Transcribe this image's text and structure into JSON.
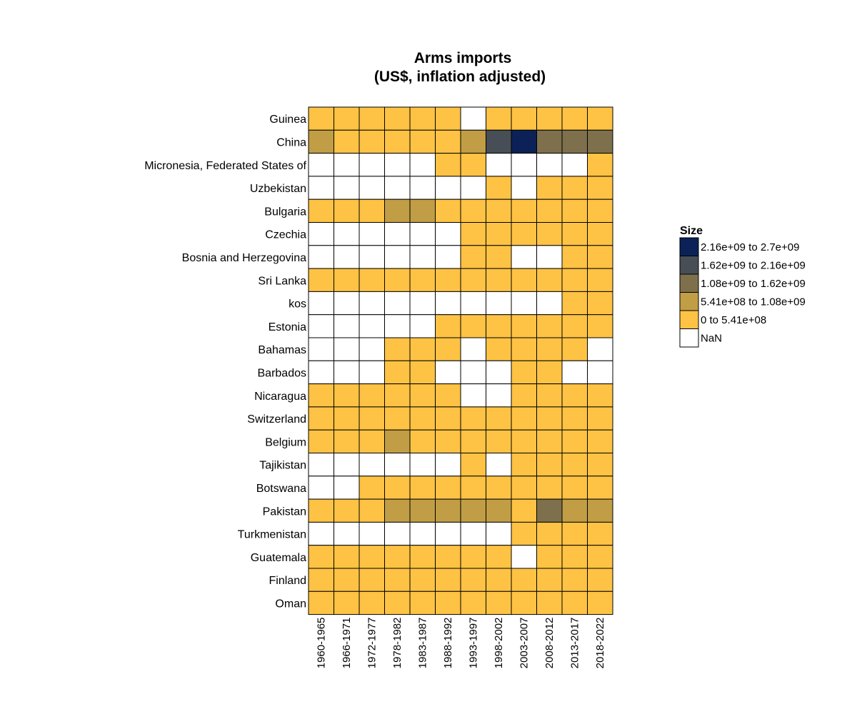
{
  "chart_data": {
    "type": "heatmap",
    "title": "Arms imports",
    "subtitle": "(US$, inflation adjusted)",
    "rows": [
      "Guinea",
      "China",
      "Micronesia, Federated States of",
      "Uzbekistan",
      "Bulgaria",
      "Czechia",
      "Bosnia and Herzegovina",
      "Sri Lanka",
      "kos",
      "Estonia",
      "Bahamas",
      "Barbados",
      "Nicaragua",
      "Switzerland",
      "Belgium",
      "Tajikistan",
      "Botswana",
      "Pakistan",
      "Turkmenistan",
      "Guatemala",
      "Finland",
      "Oman"
    ],
    "columns": [
      "1960-1965",
      "1966-1971",
      "1972-1977",
      "1978-1982",
      "1983-1987",
      "1988-1992",
      "1993-1997",
      "1998-2002",
      "2003-2007",
      "2008-2012",
      "2013-2017",
      "2018-2022"
    ],
    "legend": {
      "title": "Size",
      "position": "right",
      "bins": [
        {
          "label": "2.16e+09 to 2.7e+09",
          "color": "#0b2157"
        },
        {
          "label": "1.62e+09 to 2.16e+09",
          "color": "#474e55"
        },
        {
          "label": "1.08e+09 to 1.62e+09",
          "color": "#7e704c"
        },
        {
          "label": "5.41e+08 to 1.08e+09",
          "color": "#c19e45"
        },
        {
          "label": "0 to 5.41e+08",
          "color": "#fec344"
        },
        {
          "label": "NaN",
          "color": "#ffffff"
        }
      ]
    },
    "bin_index_note_levels": [
      "0 to 5.41e+08 = 1",
      "5.41e+08 to 1.08e+09 = 2",
      "1.08e+09 to 1.62e+09 = 3",
      "1.62e+09 to 2.16e+09 = 4",
      "2.16e+09 to 2.7e+09 = 5",
      "NaN = 0"
    ],
    "values": [
      [
        1,
        1,
        1,
        1,
        1,
        1,
        0,
        1,
        1,
        1,
        1,
        1
      ],
      [
        2,
        1,
        1,
        1,
        1,
        1,
        2,
        4,
        5,
        3,
        3,
        3
      ],
      [
        0,
        0,
        0,
        0,
        0,
        1,
        1,
        0,
        0,
        0,
        0,
        1
      ],
      [
        0,
        0,
        0,
        0,
        0,
        0,
        0,
        1,
        0,
        1,
        1,
        1
      ],
      [
        1,
        1,
        1,
        2,
        2,
        1,
        1,
        1,
        1,
        1,
        1,
        1
      ],
      [
        0,
        0,
        0,
        0,
        0,
        0,
        1,
        1,
        1,
        1,
        1,
        1
      ],
      [
        0,
        0,
        0,
        0,
        0,
        0,
        1,
        1,
        0,
        0,
        1,
        1
      ],
      [
        1,
        1,
        1,
        1,
        1,
        1,
        1,
        1,
        1,
        1,
        1,
        1
      ],
      [
        0,
        0,
        0,
        0,
        0,
        0,
        0,
        0,
        0,
        0,
        1,
        1
      ],
      [
        0,
        0,
        0,
        0,
        0,
        1,
        1,
        1,
        1,
        1,
        1,
        1
      ],
      [
        0,
        0,
        0,
        1,
        1,
        1,
        0,
        1,
        1,
        1,
        1,
        0
      ],
      [
        0,
        0,
        0,
        1,
        1,
        0,
        0,
        0,
        1,
        1,
        0,
        0
      ],
      [
        1,
        1,
        1,
        1,
        1,
        1,
        0,
        0,
        1,
        1,
        1,
        1
      ],
      [
        1,
        1,
        1,
        1,
        1,
        1,
        1,
        1,
        1,
        1,
        1,
        1
      ],
      [
        1,
        1,
        1,
        2,
        1,
        1,
        1,
        1,
        1,
        1,
        1,
        1
      ],
      [
        0,
        0,
        0,
        0,
        0,
        0,
        1,
        0,
        1,
        1,
        1,
        1
      ],
      [
        0,
        0,
        1,
        1,
        1,
        1,
        1,
        1,
        1,
        1,
        1,
        1
      ],
      [
        1,
        1,
        1,
        2,
        2,
        2,
        2,
        2,
        1,
        3,
        2,
        2
      ],
      [
        0,
        0,
        0,
        0,
        0,
        0,
        0,
        0,
        1,
        1,
        1,
        1
      ],
      [
        1,
        1,
        1,
        1,
        1,
        1,
        1,
        1,
        0,
        1,
        1,
        1
      ],
      [
        1,
        1,
        1,
        1,
        1,
        1,
        1,
        1,
        1,
        1,
        1,
        1
      ],
      [
        1,
        1,
        1,
        1,
        1,
        1,
        1,
        1,
        1,
        1,
        1,
        1
      ]
    ]
  }
}
